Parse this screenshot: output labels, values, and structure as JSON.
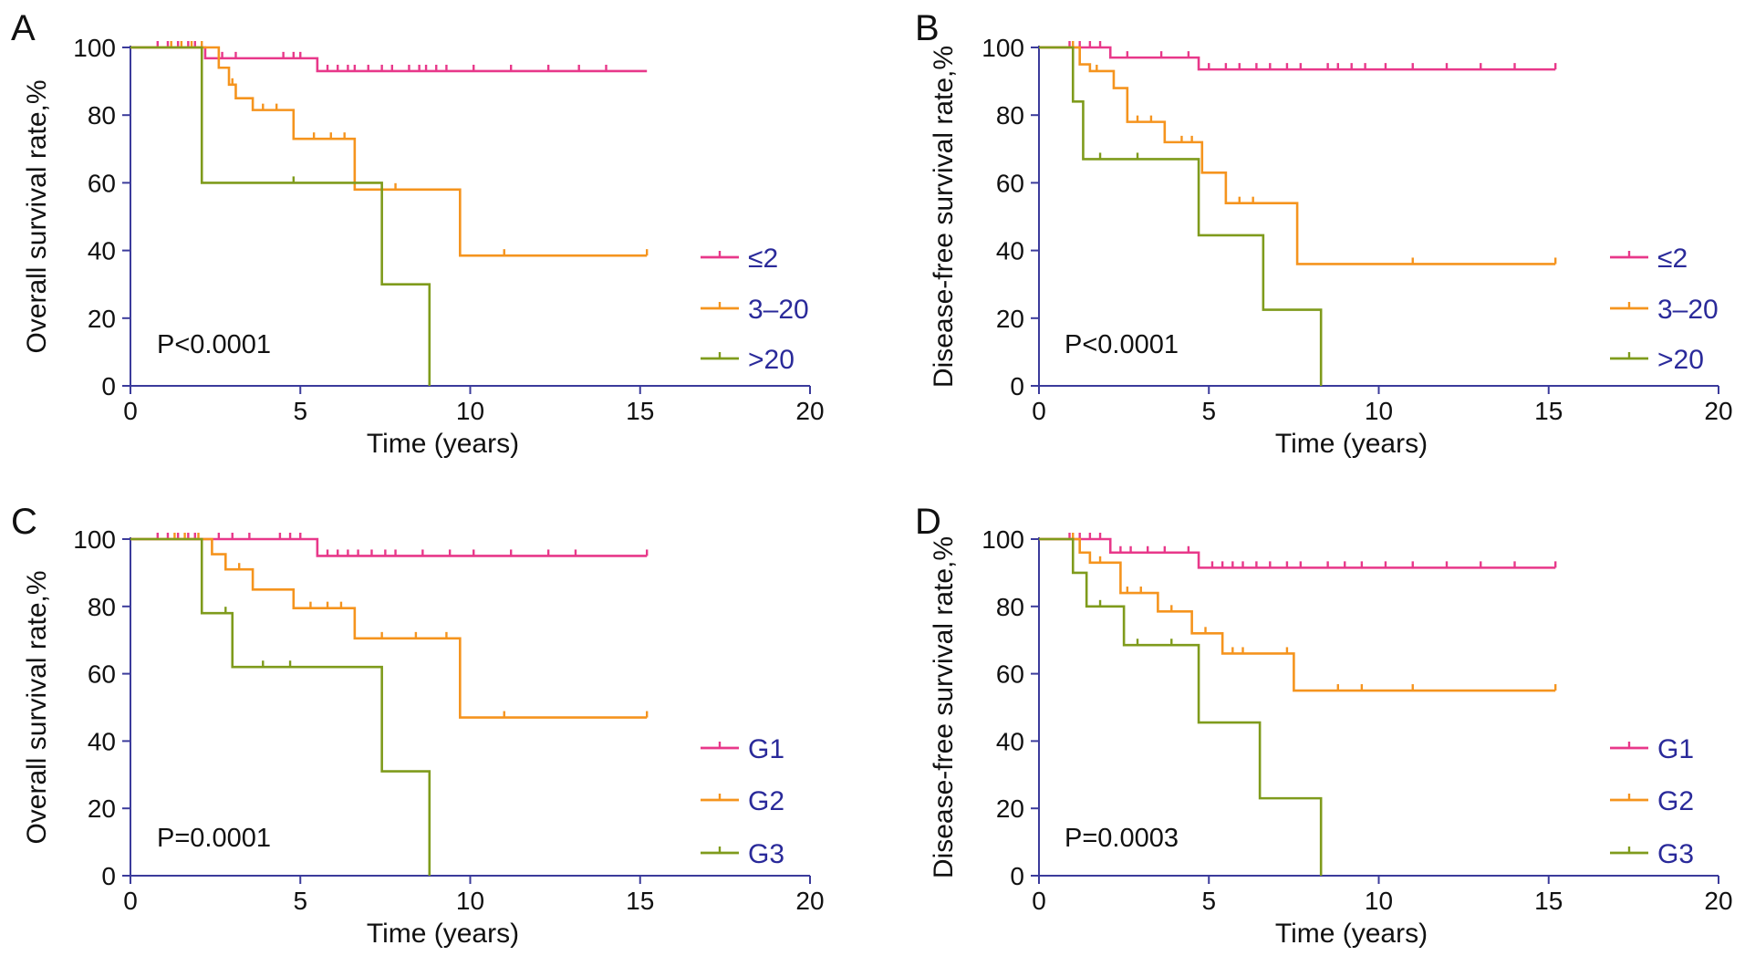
{
  "figure": {
    "background": "#ffffff",
    "axis_color": "#3b3b9b",
    "legend_text_color": "#2a2a9a"
  },
  "chart_data": [
    {
      "panel": "A",
      "type": "line",
      "step": true,
      "title": "",
      "xlabel": "Time (years)",
      "ylabel": "Overall survival rate,%",
      "xlim": [
        0,
        20
      ],
      "ylim": [
        0,
        100
      ],
      "xticks": [
        "0",
        "5",
        "10",
        "15",
        "20"
      ],
      "yticks": [
        "0",
        "20",
        "40",
        "60",
        "80",
        "100"
      ],
      "pvalue": "P<0.0001",
      "legend_position": "right",
      "series": [
        {
          "name": "≤2",
          "color": "#e8388a",
          "x": [
            0,
            2.2,
            5.5,
            15.2
          ],
          "y": [
            100,
            96.8,
            93,
            93
          ],
          "censored": [
            [
              0.8,
              100
            ],
            [
              1.1,
              100
            ],
            [
              1.4,
              100
            ],
            [
              1.7,
              100
            ],
            [
              1.9,
              100
            ],
            [
              2.7,
              96.8
            ],
            [
              3.1,
              96.8
            ],
            [
              4.5,
              96.8
            ],
            [
              4.8,
              96.8
            ],
            [
              5.0,
              96.8
            ],
            [
              5.8,
              93
            ],
            [
              6.1,
              93
            ],
            [
              6.4,
              93
            ],
            [
              6.6,
              93
            ],
            [
              7.0,
              93
            ],
            [
              7.4,
              93
            ],
            [
              7.7,
              93
            ],
            [
              8.2,
              93
            ],
            [
              8.5,
              93
            ],
            [
              8.7,
              93
            ],
            [
              9.0,
              93
            ],
            [
              9.3,
              93
            ],
            [
              10.1,
              93
            ],
            [
              11.2,
              93
            ],
            [
              12.3,
              93
            ],
            [
              13.2,
              93
            ],
            [
              14.0,
              93
            ]
          ]
        },
        {
          "name": "3–20",
          "color": "#f5941e",
          "x": [
            0,
            2.6,
            2.9,
            3.1,
            3.6,
            4.8,
            6.6,
            9.7,
            15.2
          ],
          "y": [
            100,
            94,
            89,
            85,
            81.5,
            73,
            58,
            38.5,
            38.5
          ],
          "censored": [
            [
              1.2,
              100
            ],
            [
              1.5,
              100
            ],
            [
              1.8,
              100
            ],
            [
              2.1,
              100
            ],
            [
              3.0,
              89
            ],
            [
              3.9,
              81.5
            ],
            [
              4.3,
              81.5
            ],
            [
              5.4,
              73
            ],
            [
              5.9,
              73
            ],
            [
              6.3,
              73
            ],
            [
              7.8,
              58
            ],
            [
              11.0,
              38.5
            ],
            [
              15.2,
              38.5
            ]
          ]
        },
        {
          "name": ">20",
          "color": "#7f9b1c",
          "x": [
            0,
            2.1,
            7.4,
            8.8
          ],
          "y": [
            100,
            60,
            30,
            0
          ],
          "censored": [
            [
              4.8,
              60
            ]
          ]
        }
      ]
    },
    {
      "panel": "B",
      "type": "line",
      "step": true,
      "title": "",
      "xlabel": "Time (years)",
      "ylabel": "Disease-free survival rate,%",
      "xlim": [
        0,
        20
      ],
      "ylim": [
        0,
        100
      ],
      "xticks": [
        "0",
        "5",
        "10",
        "15",
        "20"
      ],
      "yticks": [
        "0",
        "20",
        "40",
        "60",
        "80",
        "100"
      ],
      "pvalue": "P<0.0001",
      "legend_position": "right",
      "series": [
        {
          "name": "≤2",
          "color": "#e8388a",
          "x": [
            0,
            2.1,
            4.7,
            15.2
          ],
          "y": [
            100,
            97,
            93.5,
            93.5
          ],
          "censored": [
            [
              0.9,
              100
            ],
            [
              1.2,
              100
            ],
            [
              1.5,
              100
            ],
            [
              1.8,
              100
            ],
            [
              2.6,
              97
            ],
            [
              3.6,
              97
            ],
            [
              4.4,
              97
            ],
            [
              5.0,
              93.5
            ],
            [
              5.5,
              93.5
            ],
            [
              5.9,
              93.5
            ],
            [
              6.4,
              93.5
            ],
            [
              6.8,
              93.5
            ],
            [
              7.3,
              93.5
            ],
            [
              7.7,
              93.5
            ],
            [
              8.5,
              93.5
            ],
            [
              8.8,
              93.5
            ],
            [
              9.2,
              93.5
            ],
            [
              9.6,
              93.5
            ],
            [
              10.2,
              93.5
            ],
            [
              11.0,
              93.5
            ],
            [
              12.0,
              93.5
            ],
            [
              13.0,
              93.5
            ],
            [
              14.0,
              93.5
            ],
            [
              15.2,
              93.5
            ]
          ]
        },
        {
          "name": "3–20",
          "color": "#f5941e",
          "x": [
            0,
            1.2,
            1.5,
            2.2,
            2.6,
            3.7,
            4.8,
            5.5,
            7.6,
            15.2
          ],
          "y": [
            100,
            95,
            93,
            88,
            78,
            72,
            63,
            54,
            36,
            36
          ],
          "censored": [
            [
              1.0,
              100
            ],
            [
              1.7,
              93
            ],
            [
              2.9,
              78
            ],
            [
              3.3,
              78
            ],
            [
              4.2,
              72
            ],
            [
              4.5,
              72
            ],
            [
              5.9,
              54
            ],
            [
              6.3,
              54
            ],
            [
              11.0,
              36
            ],
            [
              15.2,
              36
            ]
          ]
        },
        {
          "name": ">20",
          "color": "#7f9b1c",
          "x": [
            0,
            1.0,
            1.3,
            4.7,
            6.6,
            8.3
          ],
          "y": [
            100,
            84,
            67,
            44.5,
            22.5,
            0
          ],
          "censored": [
            [
              1.8,
              67
            ],
            [
              2.9,
              67
            ]
          ]
        }
      ]
    },
    {
      "panel": "C",
      "type": "line",
      "step": true,
      "title": "",
      "xlabel": "Time (years)",
      "ylabel": "Overall survival rate,%",
      "xlim": [
        0,
        20
      ],
      "ylim": [
        0,
        100
      ],
      "xticks": [
        "0",
        "5",
        "10",
        "15",
        "20"
      ],
      "yticks": [
        "0",
        "20",
        "40",
        "60",
        "80",
        "100"
      ],
      "pvalue": "P=0.0001",
      "legend_position": "right",
      "series": [
        {
          "name": "G1",
          "color": "#e8388a",
          "x": [
            0,
            5.5,
            15.2
          ],
          "y": [
            100,
            95,
            95
          ],
          "censored": [
            [
              0.8,
              100
            ],
            [
              1.1,
              100
            ],
            [
              1.4,
              100
            ],
            [
              1.7,
              100
            ],
            [
              1.9,
              100
            ],
            [
              2.6,
              100
            ],
            [
              3.0,
              100
            ],
            [
              3.5,
              100
            ],
            [
              4.4,
              100
            ],
            [
              4.7,
              100
            ],
            [
              5.0,
              100
            ],
            [
              5.8,
              95
            ],
            [
              6.1,
              95
            ],
            [
              6.4,
              95
            ],
            [
              6.7,
              95
            ],
            [
              7.1,
              95
            ],
            [
              7.5,
              95
            ],
            [
              7.8,
              95
            ],
            [
              8.6,
              95
            ],
            [
              9.4,
              95
            ],
            [
              10.1,
              95
            ],
            [
              11.2,
              95
            ],
            [
              12.3,
              95
            ],
            [
              13.1,
              95
            ],
            [
              15.2,
              95
            ]
          ]
        },
        {
          "name": "G2",
          "color": "#f5941e",
          "x": [
            0,
            2.4,
            2.8,
            3.6,
            4.8,
            6.6,
            9.7,
            15.2
          ],
          "y": [
            100,
            95.5,
            91,
            85,
            79.5,
            70.5,
            47,
            47
          ],
          "censored": [
            [
              1.3,
              100
            ],
            [
              1.6,
              100
            ],
            [
              2.0,
              100
            ],
            [
              3.2,
              91
            ],
            [
              5.3,
              79.5
            ],
            [
              5.8,
              79.5
            ],
            [
              6.2,
              79.5
            ],
            [
              7.4,
              70.5
            ],
            [
              8.4,
              70.5
            ],
            [
              9.3,
              70.5
            ],
            [
              11.0,
              47
            ],
            [
              15.2,
              47
            ]
          ]
        },
        {
          "name": "G3",
          "color": "#7f9b1c",
          "x": [
            0,
            2.1,
            3.0,
            7.4,
            8.8
          ],
          "y": [
            100,
            78,
            62,
            31,
            0
          ],
          "censored": [
            [
              2.8,
              78
            ],
            [
              3.9,
              62
            ],
            [
              4.7,
              62
            ]
          ]
        }
      ]
    },
    {
      "panel": "D",
      "type": "line",
      "step": true,
      "title": "",
      "xlabel": "Time (years)",
      "ylabel": "Disease-free survival rate,%",
      "xlim": [
        0,
        20
      ],
      "ylim": [
        0,
        100
      ],
      "xticks": [
        "0",
        "5",
        "10",
        "15",
        "20"
      ],
      "yticks": [
        "0",
        "20",
        "40",
        "60",
        "80",
        "100"
      ],
      "pvalue": "P=0.0003",
      "legend_position": "right",
      "series": [
        {
          "name": "G1",
          "color": "#e8388a",
          "x": [
            0,
            2.1,
            4.7,
            15.2
          ],
          "y": [
            100,
            96,
            91.5,
            91.5
          ],
          "censored": [
            [
              0.9,
              100
            ],
            [
              1.2,
              100
            ],
            [
              1.5,
              100
            ],
            [
              1.8,
              100
            ],
            [
              2.4,
              96
            ],
            [
              2.7,
              96
            ],
            [
              3.2,
              96
            ],
            [
              3.7,
              96
            ],
            [
              4.4,
              96
            ],
            [
              5.1,
              91.5
            ],
            [
              5.4,
              91.5
            ],
            [
              5.7,
              91.5
            ],
            [
              6.0,
              91.5
            ],
            [
              6.4,
              91.5
            ],
            [
              6.8,
              91.5
            ],
            [
              7.3,
              91.5
            ],
            [
              7.7,
              91.5
            ],
            [
              8.5,
              91.5
            ],
            [
              9.0,
              91.5
            ],
            [
              9.5,
              91.5
            ],
            [
              10.2,
              91.5
            ],
            [
              11.0,
              91.5
            ],
            [
              12.0,
              91.5
            ],
            [
              13.0,
              91.5
            ],
            [
              14.0,
              91.5
            ],
            [
              15.2,
              91.5
            ]
          ]
        },
        {
          "name": "G2",
          "color": "#f5941e",
          "x": [
            0,
            1.2,
            1.5,
            2.4,
            3.5,
            4.5,
            5.4,
            7.5,
            15.2
          ],
          "y": [
            100,
            96,
            93,
            84,
            78.5,
            72,
            66,
            55,
            55
          ],
          "censored": [
            [
              1.0,
              100
            ],
            [
              1.8,
              93
            ],
            [
              2.6,
              84
            ],
            [
              3.0,
              84
            ],
            [
              3.9,
              78.5
            ],
            [
              4.9,
              72
            ],
            [
              5.7,
              66
            ],
            [
              6.0,
              66
            ],
            [
              7.3,
              66
            ],
            [
              8.8,
              55
            ],
            [
              9.5,
              55
            ],
            [
              11.0,
              55
            ],
            [
              15.2,
              55
            ]
          ]
        },
        {
          "name": "G3",
          "color": "#7f9b1c",
          "x": [
            0,
            1.0,
            1.4,
            2.5,
            4.7,
            6.5,
            8.3
          ],
          "y": [
            100,
            90,
            80,
            68.5,
            45.5,
            23,
            0
          ],
          "censored": [
            [
              1.8,
              80
            ],
            [
              2.9,
              68.5
            ],
            [
              3.9,
              68.5
            ]
          ]
        }
      ]
    }
  ]
}
